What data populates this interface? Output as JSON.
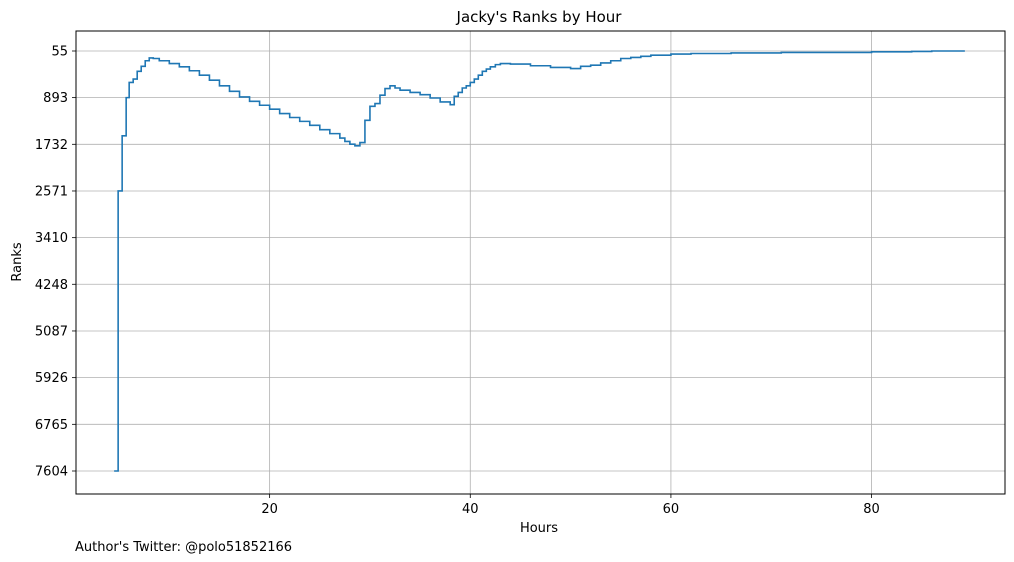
{
  "chart_data": {
    "type": "line",
    "step": true,
    "title": "Jacky's Ranks by Hour",
    "xlabel": "Hours",
    "ylabel": "Ranks",
    "xlim": [
      0.7,
      93.3
    ],
    "ylim": [
      7604,
      55
    ],
    "y_inverted": true,
    "grid": true,
    "line_color": "#1f77b4",
    "xticks": [
      20,
      40,
      60,
      80
    ],
    "yticks": [
      55,
      893,
      1732,
      2571,
      3410,
      4248,
      5087,
      5926,
      6765,
      7604
    ],
    "series": [
      {
        "x": [
          4.5,
          4.9,
          5.3,
          5.7,
          6.0,
          6.4,
          6.8,
          7.2,
          7.6,
          8.0,
          8.4,
          9.0,
          10.0,
          11.0,
          12.0,
          13.0,
          14.0,
          15.0,
          16.0,
          17.0,
          18.0,
          19.0,
          20.0,
          21.0,
          22.0,
          23.0,
          24.0,
          25.0,
          26.0,
          27.0,
          27.5,
          28.0,
          28.5,
          29.0,
          29.5,
          30.0,
          30.5,
          31.0,
          31.5,
          32.0,
          32.5,
          33.0,
          34.0,
          35.0,
          36.0,
          37.0,
          38.0,
          38.4,
          38.8,
          39.2,
          39.6,
          40.0,
          40.4,
          40.8,
          41.2,
          41.6,
          42.0,
          42.5,
          43.0,
          44.0,
          46.0,
          48.0,
          50.0,
          51.0,
          52.0,
          53.0,
          54.0,
          55.0,
          56.0,
          57.0,
          58.0,
          60.0,
          62.0,
          66.0,
          71.0,
          76.0,
          80.0,
          84.0,
          86.0,
          89.3
        ],
        "y": [
          7604,
          2571,
          1580,
          893,
          620,
          560,
          420,
          330,
          230,
          180,
          190,
          230,
          280,
          340,
          410,
          490,
          580,
          680,
          780,
          880,
          960,
          1030,
          1100,
          1180,
          1250,
          1320,
          1390,
          1470,
          1540,
          1620,
          1680,
          1730,
          1760,
          1700,
          1300,
          1050,
          1000,
          850,
          730,
          680,
          720,
          760,
          800,
          840,
          900,
          970,
          1020,
          870,
          800,
          720,
          680,
          620,
          560,
          490,
          420,
          380,
          340,
          300,
          280,
          290,
          320,
          350,
          370,
          330,
          310,
          270,
          230,
          190,
          170,
          150,
          130,
          110,
          100,
          90,
          80,
          80,
          70,
          62,
          55,
          55
        ]
      }
    ]
  },
  "footer": {
    "author_text": "Author's Twitter: @polo51852166"
  }
}
